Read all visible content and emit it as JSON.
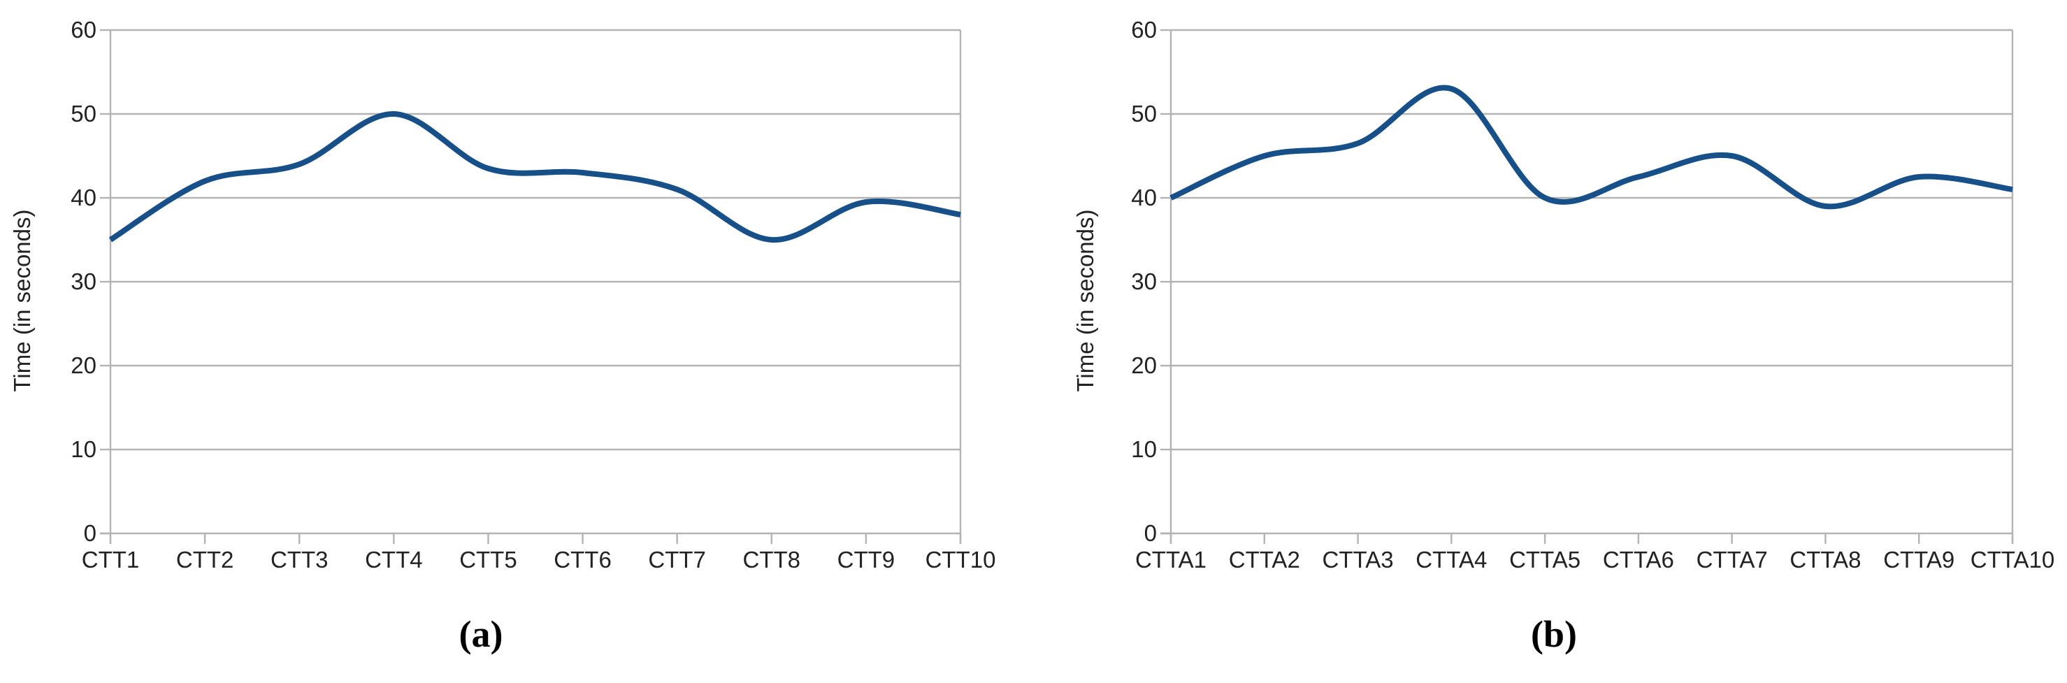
{
  "page": {
    "background": "#ffffff"
  },
  "colors": {
    "line": "#174f88",
    "grid": "#b3b3b3",
    "axis": "#b3b3b3",
    "tick_text": "#222222",
    "caption_text": "#000000"
  },
  "chart_data": [
    {
      "type": "line",
      "smooth": true,
      "caption": "(a)",
      "title": "",
      "xlabel": "",
      "ylabel": "Time (in seconds)",
      "categories": [
        "CTT1",
        "CTT2",
        "CTT3",
        "CTT4",
        "CTT5",
        "CTT6",
        "CTT7",
        "CTT8",
        "CTT9",
        "CTT10"
      ],
      "values": [
        35,
        42,
        44,
        50,
        43.5,
        43,
        41,
        35,
        39.5,
        38
      ],
      "ylim": [
        0,
        60
      ],
      "ytick_step": 10,
      "yticks": [
        0,
        10,
        20,
        30,
        40,
        50,
        60
      ],
      "grid": "horizontal",
      "legend": "none"
    },
    {
      "type": "line",
      "smooth": true,
      "caption": "(b)",
      "title": "",
      "xlabel": "",
      "ylabel": "Time (in seconds)",
      "categories": [
        "CTTA1",
        "CTTA2",
        "CTTA3",
        "CTTA4",
        "CTTA5",
        "CTTA6",
        "CTTA7",
        "CTTA8",
        "CTTA9",
        "CTTA10"
      ],
      "values": [
        40,
        45,
        46.5,
        53,
        40,
        42.5,
        45,
        39,
        42.5,
        41
      ],
      "ylim": [
        0,
        60
      ],
      "ytick_step": 10,
      "yticks": [
        0,
        10,
        20,
        30,
        40,
        50,
        60
      ],
      "grid": "horizontal",
      "legend": "none"
    }
  ]
}
